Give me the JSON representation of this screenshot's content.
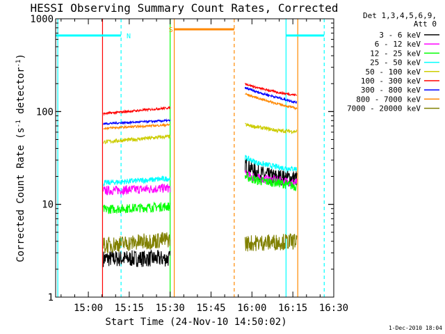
{
  "chart_data": {
    "type": "line",
    "title": "HESSI Observing Summary Count Rates, Corrected",
    "xlabel": "Start Time (24-Nov-10 14:50:02)",
    "ylabel_main": "Corrected Count Rate (s",
    "ylabel_sup1": "-1",
    "ylabel_mid": " detector",
    "ylabel_sup2": "-1",
    "ylabel_end": ")",
    "footer": "1-Dec-2010 18:04",
    "x_unit": "minutes after 14:50:02",
    "xlim": [
      -2,
      100
    ],
    "ylim": [
      1,
      1000
    ],
    "yscale": "log",
    "x_ticks": [
      {
        "value": 10,
        "label": "15:00"
      },
      {
        "value": 25,
        "label": "15:15"
      },
      {
        "value": 40,
        "label": "15:30"
      },
      {
        "value": 55,
        "label": "15:45"
      },
      {
        "value": 70,
        "label": "16:00"
      },
      {
        "value": 85,
        "label": "16:15"
      },
      {
        "value": 100,
        "label": "16:30"
      }
    ],
    "y_ticks": [
      {
        "value": 1,
        "label": "1"
      },
      {
        "value": 10,
        "label": "10"
      },
      {
        "value": 100,
        "label": "100"
      },
      {
        "value": 1000,
        "label": "1000"
      }
    ],
    "legend_header": [
      "Det 1,3,4,5,6,9,",
      "Att 0"
    ],
    "legend_position": "right",
    "series": [
      {
        "name": "3 - 6 keV",
        "color": "#000000",
        "jitter": 0.09,
        "segments": [
          [
            [
              15.5,
              2.6
            ],
            [
              40.0,
              2.6
            ]
          ],
          [
            [
              67.5,
              27
            ],
            [
              72,
              22
            ],
            [
              76.5,
              20
            ],
            [
              86.5,
              19
            ]
          ]
        ]
      },
      {
        "name": "6 - 12 keV",
        "color": "#ff00ff",
        "jitter": 0.05,
        "segments": [
          [
            [
              15.5,
              14
            ],
            [
              40.0,
              15
            ]
          ],
          [
            [
              67.5,
              21
            ],
            [
              72,
              19
            ],
            [
              80,
              18
            ],
            [
              86.5,
              17
            ]
          ]
        ]
      },
      {
        "name": "12 - 25 keV",
        "color": "#00ff00",
        "jitter": 0.05,
        "segments": [
          [
            [
              15.5,
              8.8
            ],
            [
              40.0,
              9.5
            ]
          ],
          [
            [
              67.5,
              20
            ],
            [
              72,
              18
            ],
            [
              80,
              17
            ],
            [
              86.5,
              15.5
            ]
          ]
        ]
      },
      {
        "name": "25 - 50 keV",
        "color": "#00ffff",
        "jitter": 0.03,
        "segments": [
          [
            [
              15.5,
              17
            ],
            [
              40.0,
              19
            ]
          ],
          [
            [
              67.5,
              32
            ],
            [
              72,
              28
            ],
            [
              80,
              25
            ],
            [
              86.5,
              24
            ]
          ]
        ]
      },
      {
        "name": "50 - 100 keV",
        "color": "#cccc00",
        "jitter": 0.02,
        "segments": [
          [
            [
              15.5,
              47
            ],
            [
              40.0,
              54
            ]
          ],
          [
            [
              67.5,
              72
            ],
            [
              72,
              68
            ],
            [
              80,
              62
            ],
            [
              86.5,
              61
            ]
          ]
        ]
      },
      {
        "name": "100 - 300 keV",
        "color": "#ff0000",
        "jitter": 0.012,
        "segments": [
          [
            [
              15.5,
              95
            ],
            [
              40.0,
              110
            ]
          ],
          [
            [
              67.5,
              200
            ],
            [
              72,
              180
            ],
            [
              80,
              160
            ],
            [
              86.5,
              150
            ]
          ]
        ]
      },
      {
        "name": "300 - 800 keV",
        "color": "#0000ff",
        "jitter": 0.012,
        "segments": [
          [
            [
              15.5,
              74
            ],
            [
              40.0,
              80
            ]
          ],
          [
            [
              67.5,
              180
            ],
            [
              72,
              162
            ],
            [
              80,
              140
            ],
            [
              86.5,
              125
            ]
          ]
        ]
      },
      {
        "name": "800 - 7000 keV",
        "color": "#ff8800",
        "jitter": 0.012,
        "segments": [
          [
            [
              15.5,
              66
            ],
            [
              40.0,
              72
            ]
          ],
          [
            [
              67.5,
              155
            ],
            [
              72,
              140
            ],
            [
              80,
              120
            ],
            [
              86.5,
              108
            ]
          ]
        ]
      },
      {
        "name": "7000 - 20000 keV",
        "color": "#808000",
        "jitter": 0.09,
        "segments": [
          [
            [
              15.5,
              3.6
            ],
            [
              40.0,
              4.2
            ]
          ],
          [
            [
              67.5,
              3.8
            ],
            [
              86.5,
              4.0
            ]
          ]
        ]
      }
    ],
    "vlines": [
      {
        "x": -1.2,
        "color": "#00ffff",
        "dash": false
      },
      {
        "x": 15.2,
        "color": "#ff0000",
        "dash": false
      },
      {
        "x": 22.0,
        "color": "#00ffff",
        "dash": true
      },
      {
        "x": 40.0,
        "color": "#00ff00",
        "dash": false
      },
      {
        "x": 41.5,
        "color": "#ff8800",
        "dash": false
      },
      {
        "x": 63.5,
        "color": "#ff8800",
        "dash": true
      },
      {
        "x": 82.5,
        "color": "#00ffff",
        "dash": false
      },
      {
        "x": 86.8,
        "color": "#ff8800",
        "dash": false
      },
      {
        "x": 96.5,
        "color": "#00ffff",
        "dash": true
      }
    ],
    "bars": [
      {
        "x0": -2,
        "x1": 22.0,
        "y": 660,
        "color": "#00ffff",
        "label": "N",
        "label_x": 24.0
      },
      {
        "x0": 41.5,
        "x1": 63.5,
        "y": 770,
        "color": "#ff8800",
        "label": "S",
        "label_x": 39.5
      },
      {
        "x0": 82.5,
        "x1": 96.5,
        "y": 660,
        "color": "#00ffff",
        "label": "",
        "label_x": 0
      }
    ]
  }
}
